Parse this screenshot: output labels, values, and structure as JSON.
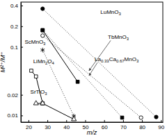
{
  "chart_data": {
    "type": "line",
    "x_label": "m/z",
    "y_label": "M²⁺/M⁺",
    "log": "y",
    "xlim": [
      16,
      91
    ],
    "ylim": [
      0.008,
      0.45
    ],
    "xticks": [
      20,
      30,
      40,
      50,
      60,
      70,
      80,
      90
    ],
    "yticks": [
      0.01,
      0.02,
      0.1,
      0.2,
      0.4
    ],
    "series": [
      {
        "color": "#000000",
        "marker": "circle-filled",
        "line_style": "dotted",
        "x": [
          27.5,
          87.5
        ],
        "values": [
          0.36,
          0.0095
        ]
      },
      {
        "color": "#000000",
        "marker": "square-filled",
        "line_style": "dotted",
        "x": [
          27.5,
          69.5
        ],
        "values": [
          0.175,
          0.0093
        ]
      },
      {
        "color": "#000000",
        "marker": "circle-open",
        "line_style": "dotted",
        "x": [
          27.5,
          79.5
        ],
        "values": [
          0.146,
          0.0093
        ]
      },
      {
        "color": "#000000",
        "marker": "square-filled",
        "line_style": "solid",
        "x": [
          27.5,
          46
        ],
        "values": [
          0.175,
          0.031
        ]
      },
      {
        "color": "#000000",
        "marker": "asterisk",
        "line_style": "dotted",
        "x": [
          27.5,
          44
        ],
        "values": [
          0.09,
          0.0098
        ]
      },
      {
        "color": "#000000",
        "marker": "square-open",
        "line_style": "solid",
        "x": [
          21.5,
          24,
          27.5
        ],
        "values": [
          0.045,
          0.037,
          0.015
        ]
      },
      {
        "color": "#000000",
        "marker": "triangle-open",
        "line_style": "solid",
        "x": [
          24,
          27.5,
          44
        ],
        "values": [
          0.015,
          0.015,
          0.0088
        ]
      }
    ],
    "annotations": [
      {
        "text": "LuMnO3",
        "x": 58,
        "y": 0.3
      },
      {
        "text": "TbMnO3",
        "x": 62,
        "y": 0.13,
        "arrow_x": 52,
        "arrow_y": 0.045
      },
      {
        "text": "La0.33Ca0.67MnO3",
        "x": 55,
        "y": 0.062,
        "arrow_x": 52,
        "arrow_y": 0.038
      },
      {
        "text": "ScMnO3",
        "x": 18,
        "y": 0.11
      },
      {
        "text": "LiMn2O4",
        "x": 22.5,
        "y": 0.058
      },
      {
        "text": "SrTiO3",
        "x": 21,
        "y": 0.021
      }
    ]
  }
}
